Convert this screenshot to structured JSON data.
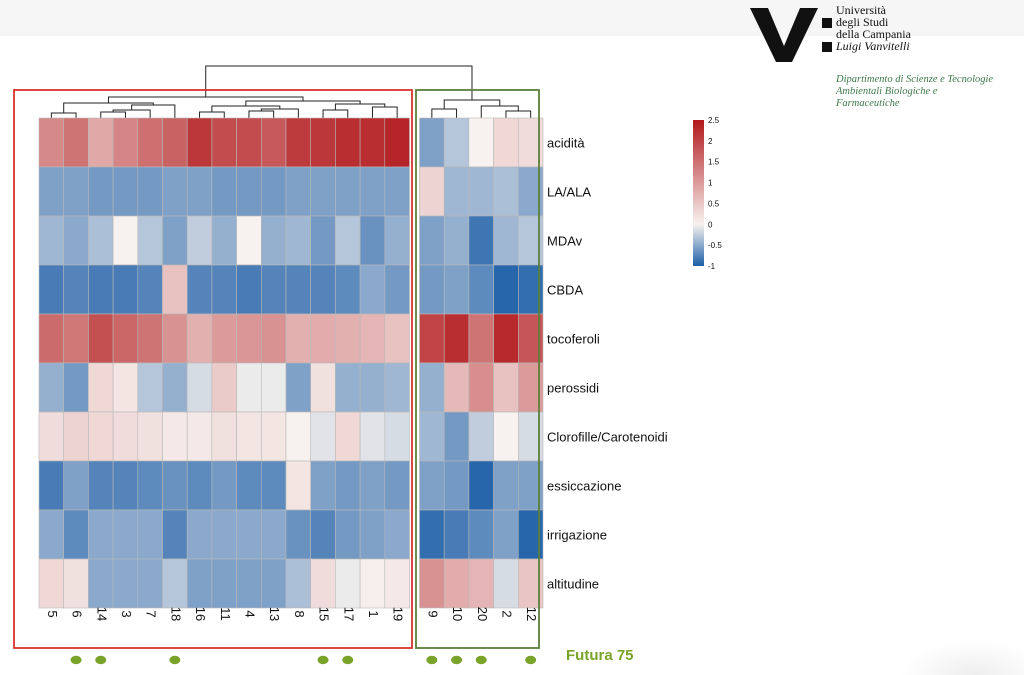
{
  "colors": {
    "low": "#1d5fa8",
    "mid": "#f7f2ef",
    "high": "#b2181b",
    "group_left_box": "#d9332c",
    "group_right_box": "#5b7f3a",
    "dot": "#7aa32a",
    "futura_text": "#7aa32a"
  },
  "logo": {
    "mark": "V:",
    "lines": [
      "Università",
      "degli Studi",
      "della Campania",
      "Luigi Vanvitelli"
    ],
    "dept": [
      "Dipartimento di Scienze e Tecnologie",
      "Ambientali Biologiche e",
      "Farmaceutiche"
    ]
  },
  "legend_label": "Futura 75",
  "chart_data": {
    "type": "heatmap",
    "title": "",
    "columns": [
      "5",
      "6",
      "14",
      "3",
      "7",
      "18",
      "16",
      "11",
      "4",
      "13",
      "8",
      "15",
      "17",
      "1",
      "19",
      "9",
      "10",
      "20",
      "2",
      "12"
    ],
    "rows": [
      "acidità",
      "LA/ALA",
      "MDAv",
      "CBDA",
      "tocoferoli",
      "perossidi",
      "Clorofille/Carotenoidi",
      "essiccazione",
      "irrigazione",
      "altitudine"
    ],
    "color_scale": {
      "min": -1,
      "max": 2.5,
      "ticks": [
        "2.5",
        "2",
        "1.5",
        "1",
        "0.5",
        "0",
        "-0.5",
        "-1"
      ]
    },
    "groups": [
      {
        "columns": [
          "5",
          "6",
          "14",
          "3",
          "7",
          "18",
          "16",
          "11",
          "4",
          "13",
          "8",
          "15",
          "17",
          "1",
          "19"
        ],
        "outline": "red"
      },
      {
        "columns": [
          "9",
          "10",
          "20",
          "2",
          "12"
        ],
        "outline": "green"
      }
    ],
    "highlighted_columns": [
      "6",
      "14",
      "18",
      "15",
      "17",
      "9",
      "10",
      "20",
      "12"
    ],
    "values": [
      [
        1.2,
        1.45,
        0.85,
        1.25,
        1.5,
        1.65,
        2.15,
        1.9,
        1.9,
        1.75,
        2.1,
        2.15,
        2.25,
        2.25,
        2.35,
        -0.55,
        -0.3,
        0.0,
        0.3,
        0.25
      ],
      [
        -0.55,
        -0.55,
        -0.6,
        -0.6,
        -0.6,
        -0.55,
        -0.55,
        -0.6,
        -0.6,
        -0.6,
        -0.55,
        -0.55,
        -0.55,
        -0.55,
        -0.55,
        0.35,
        -0.4,
        -0.4,
        -0.35,
        -0.5
      ],
      [
        -0.4,
        -0.5,
        -0.35,
        0.0,
        -0.3,
        -0.55,
        -0.25,
        -0.45,
        0.0,
        -0.45,
        -0.4,
        -0.6,
        -0.3,
        -0.65,
        -0.45,
        -0.55,
        -0.45,
        -0.85,
        -0.4,
        -0.3
      ],
      [
        -0.8,
        -0.75,
        -0.8,
        -0.8,
        -0.75,
        0.55,
        -0.75,
        -0.75,
        -0.8,
        -0.75,
        -0.75,
        -0.75,
        -0.7,
        -0.5,
        -0.6,
        -0.6,
        -0.55,
        -0.7,
        -0.95,
        -0.9
      ],
      [
        1.55,
        1.4,
        1.85,
        1.6,
        1.45,
        1.1,
        0.75,
        1.0,
        1.05,
        1.1,
        0.75,
        0.8,
        0.75,
        0.7,
        0.55,
        2.0,
        2.25,
        1.45,
        2.3,
        1.8
      ],
      [
        -0.45,
        -0.6,
        0.3,
        0.15,
        -0.3,
        -0.45,
        -0.15,
        0.45,
        -0.05,
        -0.05,
        -0.55,
        0.2,
        -0.45,
        -0.45,
        -0.4,
        -0.45,
        0.65,
        1.15,
        0.55,
        1.0
      ],
      [
        0.25,
        0.35,
        0.3,
        0.25,
        0.2,
        0.1,
        0.1,
        0.2,
        0.15,
        0.15,
        0.0,
        -0.1,
        0.3,
        -0.1,
        -0.15,
        -0.4,
        -0.6,
        -0.25,
        0.0,
        -0.15
      ],
      [
        -0.8,
        -0.55,
        -0.75,
        -0.75,
        -0.7,
        -0.65,
        -0.7,
        -0.6,
        -0.7,
        -0.7,
        0.15,
        -0.55,
        -0.6,
        -0.55,
        -0.6,
        -0.55,
        -0.6,
        -0.95,
        -0.55,
        -0.55
      ],
      [
        -0.5,
        -0.7,
        -0.5,
        -0.5,
        -0.5,
        -0.75,
        -0.5,
        -0.5,
        -0.5,
        -0.5,
        -0.65,
        -0.75,
        -0.6,
        -0.55,
        -0.5,
        -0.9,
        -0.8,
        -0.7,
        -0.55,
        -0.95
      ],
      [
        0.3,
        0.2,
        -0.5,
        -0.5,
        -0.5,
        -0.3,
        -0.55,
        -0.55,
        -0.55,
        -0.55,
        -0.35,
        0.25,
        -0.05,
        0.05,
        0.1,
        1.1,
        0.8,
        0.7,
        -0.15,
        0.5
      ]
    ]
  }
}
